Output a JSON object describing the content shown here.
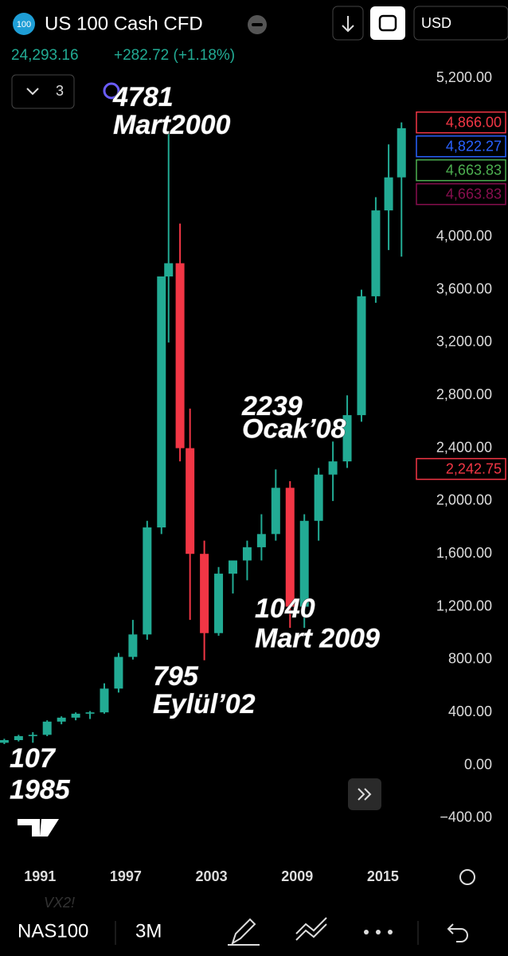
{
  "header": {
    "symbol_icon": "100",
    "symbol": "US 100 Cash CFD",
    "price": "24,293.16",
    "change": "+282.72 (+1.18%)",
    "indicator_count": "3",
    "currency": "USD"
  },
  "footer": {
    "ghost": "VX2!",
    "ticker": "NAS100",
    "interval": "3M"
  },
  "chart_data": {
    "type": "candlestick",
    "x": [
      1988.5,
      1989.5,
      1990.5,
      1991.5,
      1992.5,
      1993.5,
      1994.5,
      1995.5,
      1996.5,
      1997.5,
      1998.5,
      1999.5,
      2000.0,
      2000.8,
      2001.5,
      2002.5,
      2003.5,
      2004.5,
      2005.5,
      2006.5,
      2007.5,
      2008.5,
      2009.5,
      2010.5,
      2011.5,
      2012.5,
      2013.5,
      2014.5,
      2015.4,
      2016.3
    ],
    "open": [
      170,
      190,
      220,
      230,
      330,
      360,
      390,
      400,
      580,
      820,
      990,
      1800,
      3700,
      3800,
      2400,
      1600,
      1000,
      1450,
      1550,
      1650,
      1750,
      2100,
      1200,
      1850,
      2200,
      2300,
      2650,
      3550,
      4200,
      4450
    ],
    "high": [
      200,
      230,
      250,
      340,
      370,
      400,
      410,
      620,
      850,
      1100,
      1850,
      3700,
      4781,
      4100,
      2700,
      1700,
      1500,
      1550,
      1700,
      1900,
      2239,
      2150,
      1900,
      2250,
      2450,
      2800,
      3600,
      4300,
      4700,
      4866
    ],
    "low": [
      160,
      180,
      170,
      220,
      310,
      340,
      350,
      390,
      550,
      800,
      950,
      1750,
      3200,
      2300,
      1100,
      795,
      980,
      1300,
      1400,
      1550,
      1700,
      1040,
      1040,
      1700,
      2000,
      2250,
      2600,
      3500,
      3900,
      3850
    ],
    "close": [
      190,
      220,
      230,
      330,
      360,
      390,
      400,
      580,
      820,
      990,
      1800,
      3700,
      3800,
      2400,
      1600,
      1000,
      1450,
      1550,
      1650,
      1750,
      2100,
      1200,
      1850,
      2200,
      2300,
      2650,
      3550,
      4200,
      4450,
      4822
    ],
    "up_color": "#22ab94",
    "down_color": "#f23645",
    "xlim": [
      1988.2,
      2016.9
    ],
    "xticks": [
      1991,
      1997,
      2003,
      2009,
      2015
    ],
    "ylim": [
      -600,
      5250
    ],
    "yticks": [
      {
        "value": -400,
        "label": "−400.00"
      },
      {
        "value": 0,
        "label": "0.00"
      },
      {
        "value": 400,
        "label": "400.00"
      },
      {
        "value": 800,
        "label": "800.00"
      },
      {
        "value": 1200,
        "label": "1,200.00"
      },
      {
        "value": 1600,
        "label": "1,600.00"
      },
      {
        "value": 2000,
        "label": "2,000.00"
      },
      {
        "value": 2400,
        "label": "2,400.00"
      },
      {
        "value": 2800,
        "label": "2,800.00"
      },
      {
        "value": 3200,
        "label": "3,200.00"
      },
      {
        "value": 3600,
        "label": "3,600.00"
      },
      {
        "value": 4000,
        "label": "4,000.00"
      },
      {
        "value": 5200,
        "label": "5,200.00"
      }
    ],
    "grid": false,
    "price_tags": [
      {
        "value": 4866,
        "label": "4,866.00",
        "color": "#f23645"
      },
      {
        "value": 4822.27,
        "label": "4,822.27",
        "color": "#2962ff"
      },
      {
        "value": 4663.83,
        "label": "4,663.83",
        "color": "#4caf50"
      },
      {
        "value": 4663.83,
        "label": "4,663.83",
        "color": "#880e4f"
      },
      {
        "value": 2242.75,
        "label": "2,242.75",
        "color": "#f23645"
      }
    ],
    "annotations": [
      [
        "4781",
        "Mart2000"
      ],
      [
        "2239",
        "Ocak’08"
      ],
      [
        "1040",
        "Mart 2009"
      ],
      [
        "795",
        "Eylül’02"
      ],
      [
        "107",
        "1985"
      ]
    ]
  }
}
